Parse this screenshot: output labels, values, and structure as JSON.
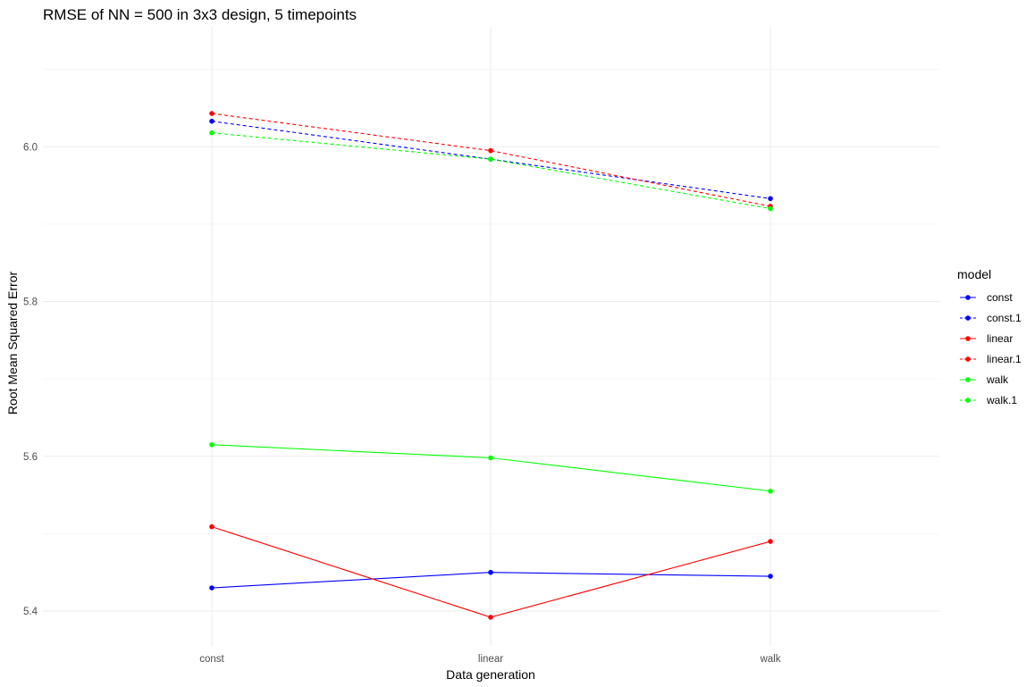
{
  "chart_data": {
    "type": "line",
    "title": "RMSE of NN = 500 in 3x3 design, 5 timepoints",
    "xlabel": "Data generation",
    "ylabel": "Root Mean Squared Error",
    "categories": [
      "const",
      "linear",
      "walk"
    ],
    "ylim": [
      5.355,
      6.155
    ],
    "y_ticks": [
      5.4,
      5.6,
      5.8,
      6.0
    ],
    "y_tick_labels": [
      "5.4",
      "5.6",
      "5.8",
      "6.0"
    ],
    "grid": true,
    "legend": {
      "title": "model",
      "position": "right"
    },
    "series": [
      {
        "name": "const",
        "color": "#0000ff",
        "dash": "solid",
        "values": [
          5.43,
          5.45,
          5.445
        ]
      },
      {
        "name": "const.1",
        "color": "#0000ff",
        "dash": "dashed",
        "values": [
          6.033,
          5.984,
          5.933
        ]
      },
      {
        "name": "linear",
        "color": "#ff0000",
        "dash": "solid",
        "values": [
          5.509,
          5.392,
          5.49
        ]
      },
      {
        "name": "linear.1",
        "color": "#ff0000",
        "dash": "dashed",
        "values": [
          6.043,
          5.995,
          5.923
        ]
      },
      {
        "name": "walk",
        "color": "#00ff00",
        "dash": "solid",
        "values": [
          5.615,
          5.598,
          5.555
        ]
      },
      {
        "name": "walk.1",
        "color": "#00ff00",
        "dash": "dashed",
        "values": [
          6.018,
          5.984,
          5.92
        ]
      }
    ]
  }
}
